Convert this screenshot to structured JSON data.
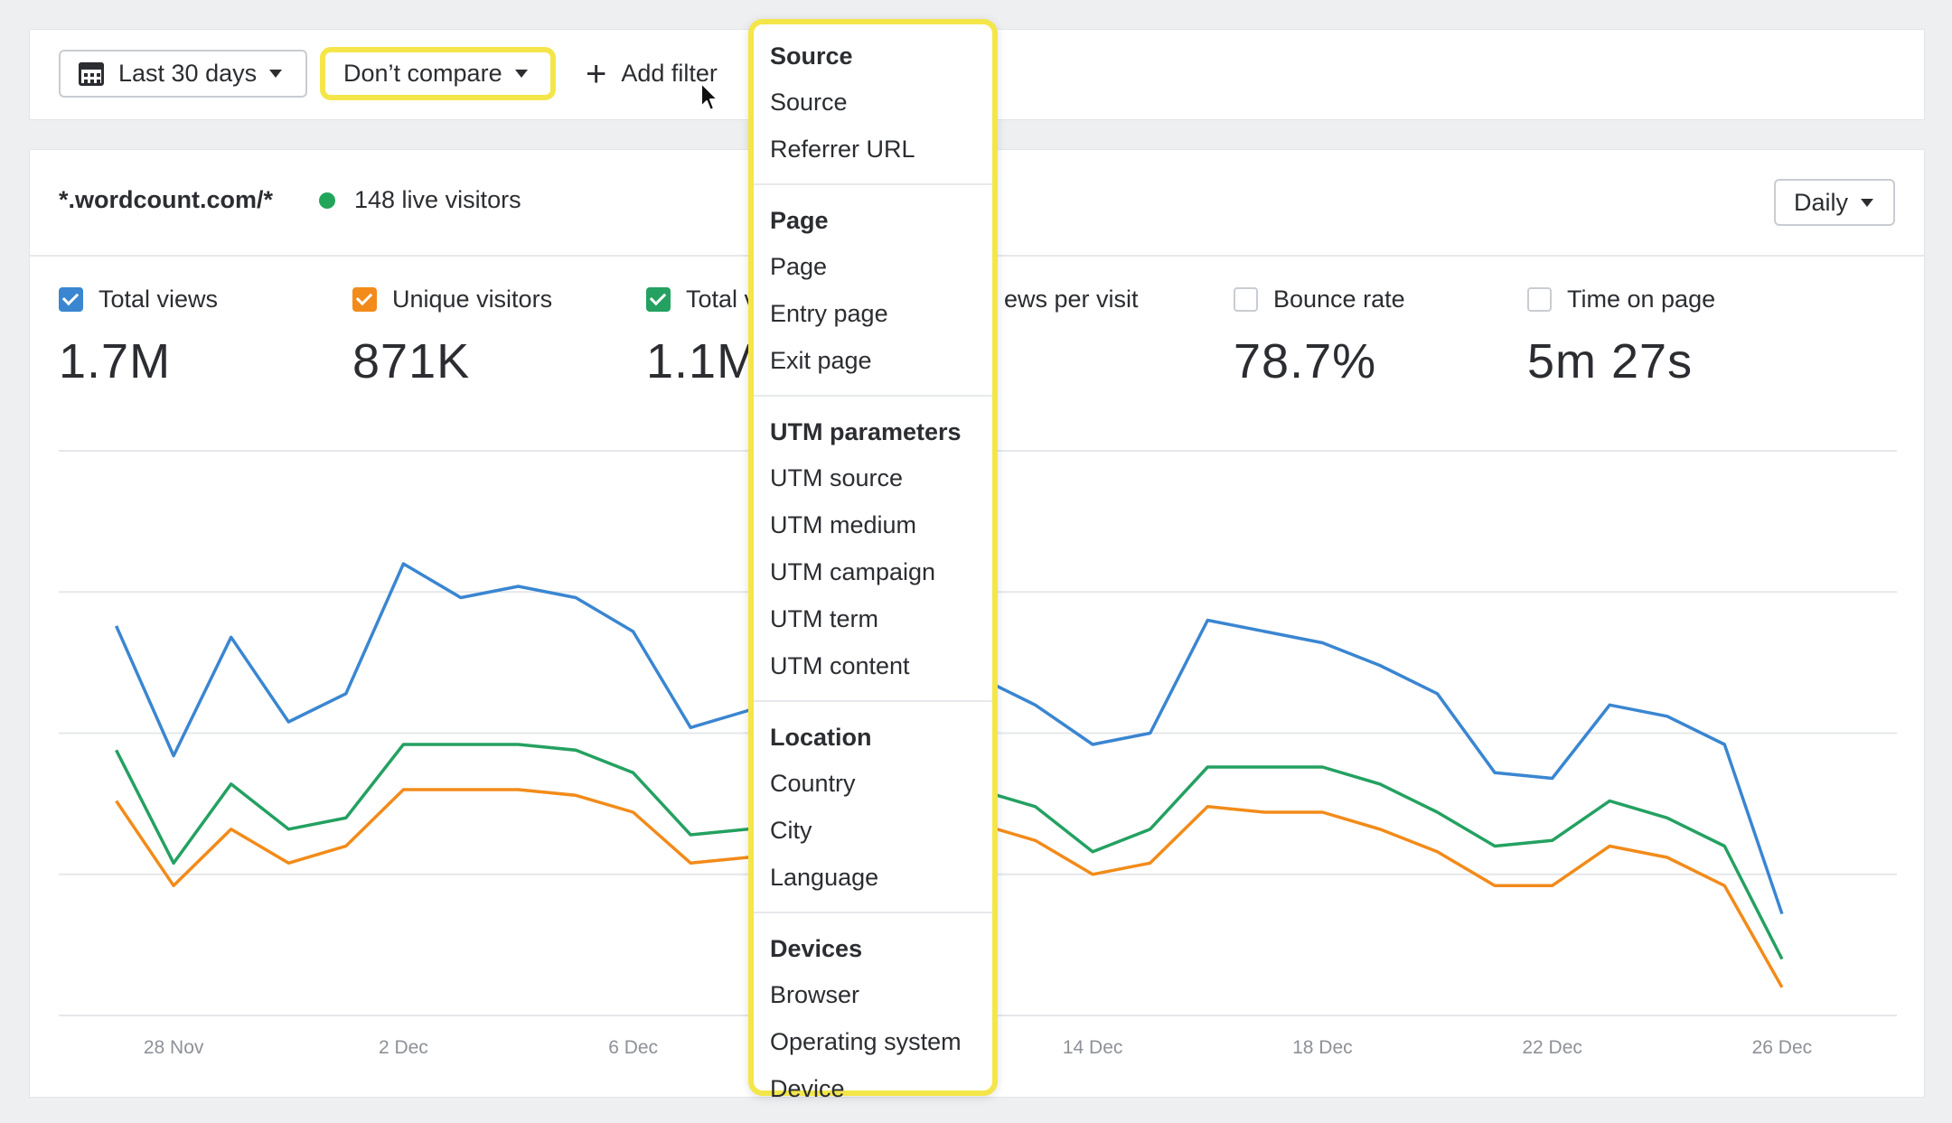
{
  "toolbar": {
    "date_range": "Last 30 days",
    "compare": "Don’t compare",
    "add_filter": "Add filter"
  },
  "header": {
    "site": "*.wordcount.com/*",
    "live_visitors": "148 live visitors",
    "interval": "Daily"
  },
  "metrics": [
    {
      "label": "Total views",
      "value": "1.7M",
      "checked": true,
      "color": "#3a86d1"
    },
    {
      "label": "Unique visitors",
      "value": "871K",
      "checked": true,
      "color": "#f28b1a"
    },
    {
      "label": "Total v",
      "value": "1.1M",
      "checked": true,
      "color": "#24a161"
    },
    {
      "label": "ews per visit",
      "value": "",
      "checked": false,
      "color": ""
    },
    {
      "label": "Bounce rate",
      "value": "78.7%",
      "checked": false,
      "color": ""
    },
    {
      "label": "Time on page",
      "value": "5m 27s",
      "checked": false,
      "color": ""
    }
  ],
  "menu": {
    "groups": [
      {
        "header": "Source",
        "items": [
          "Source",
          "Referrer URL"
        ]
      },
      {
        "header": "Page",
        "items": [
          "Page",
          "Entry page",
          "Exit page"
        ]
      },
      {
        "header": "UTM parameters",
        "items": [
          "UTM source",
          "UTM medium",
          "UTM campaign",
          "UTM term",
          "UTM content"
        ]
      },
      {
        "header": "Location",
        "items": [
          "Country",
          "City",
          "Language"
        ]
      },
      {
        "header": "Devices",
        "items": [
          "Browser",
          "Operating system",
          "Device"
        ]
      }
    ]
  },
  "chart_data": {
    "type": "line",
    "x_ticks": [
      "28 Nov",
      "2 Dec",
      "6 Dec",
      "14 Dec",
      "18 Dec",
      "22 Dec",
      "26 Dec"
    ],
    "x": [
      27,
      28,
      29,
      30,
      31,
      32,
      33,
      34,
      35,
      36,
      37,
      38,
      39,
      40,
      41,
      42,
      43,
      44,
      45,
      46,
      47,
      48,
      49,
      50,
      51,
      52,
      53,
      54,
      55,
      56,
      57
    ],
    "x_tick_positions": [
      28,
      32,
      36,
      44,
      48,
      52,
      56
    ],
    "ylim": [
      0,
      100
    ],
    "grid": true,
    "series": [
      {
        "color": "#3a86d1",
        "values": [
          69,
          46,
          67,
          52,
          57,
          80,
          74,
          76,
          74,
          68,
          51,
          54,
          61,
          66,
          64,
          60,
          55,
          48,
          50,
          70,
          68,
          66,
          62,
          57,
          43,
          42,
          55,
          53,
          48,
          18,
          null
        ]
      },
      {
        "color": "#24a161",
        "values": [
          47,
          27,
          41,
          33,
          35,
          48,
          48,
          48,
          47,
          43,
          32,
          33,
          40,
          45,
          44,
          40,
          37,
          29,
          33,
          44,
          44,
          44,
          41,
          36,
          30,
          31,
          38,
          35,
          30,
          10,
          null
        ]
      },
      {
        "color": "#f28b1a",
        "values": [
          38,
          23,
          33,
          27,
          30,
          40,
          40,
          40,
          39,
          36,
          27,
          28,
          34,
          38,
          36,
          34,
          31,
          25,
          27,
          37,
          36,
          36,
          33,
          29,
          23,
          23,
          30,
          28,
          23,
          5,
          null
        ]
      }
    ]
  }
}
